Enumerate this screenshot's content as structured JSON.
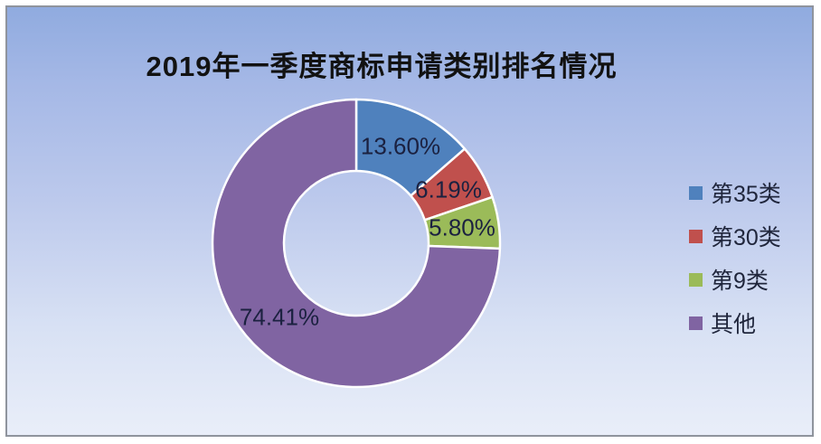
{
  "title": "2019年一季度商标申请类别排名情况",
  "chart_data": {
    "type": "pie",
    "subtype": "donut",
    "title": "2019年一季度商标申请类别排名情况",
    "start_angle_deg": 0,
    "direction": "clockwise",
    "inner_radius_ratio": 0.5,
    "legend_position": "right",
    "slices": [
      {
        "label": "第35类",
        "value": 13.6,
        "display": "13.60%",
        "color": "#4f81bd"
      },
      {
        "label": "第30类",
        "value": 6.19,
        "display": "6.19%",
        "color": "#c0504d"
      },
      {
        "label": "第9类",
        "value": 5.8,
        "display": "5.80%",
        "color": "#9bbb59"
      },
      {
        "label": "其他",
        "value": 74.41,
        "display": "74.41%",
        "color": "#8064a2"
      }
    ]
  },
  "colors": {
    "background_top": "#90abdf",
    "background_bottom": "#e9eef9",
    "frame_border": "#8f949d",
    "slice_separator": "#ffffff",
    "title_text": "#121212",
    "data_label_text": "#1b2140",
    "legend_text": "#20263c"
  }
}
